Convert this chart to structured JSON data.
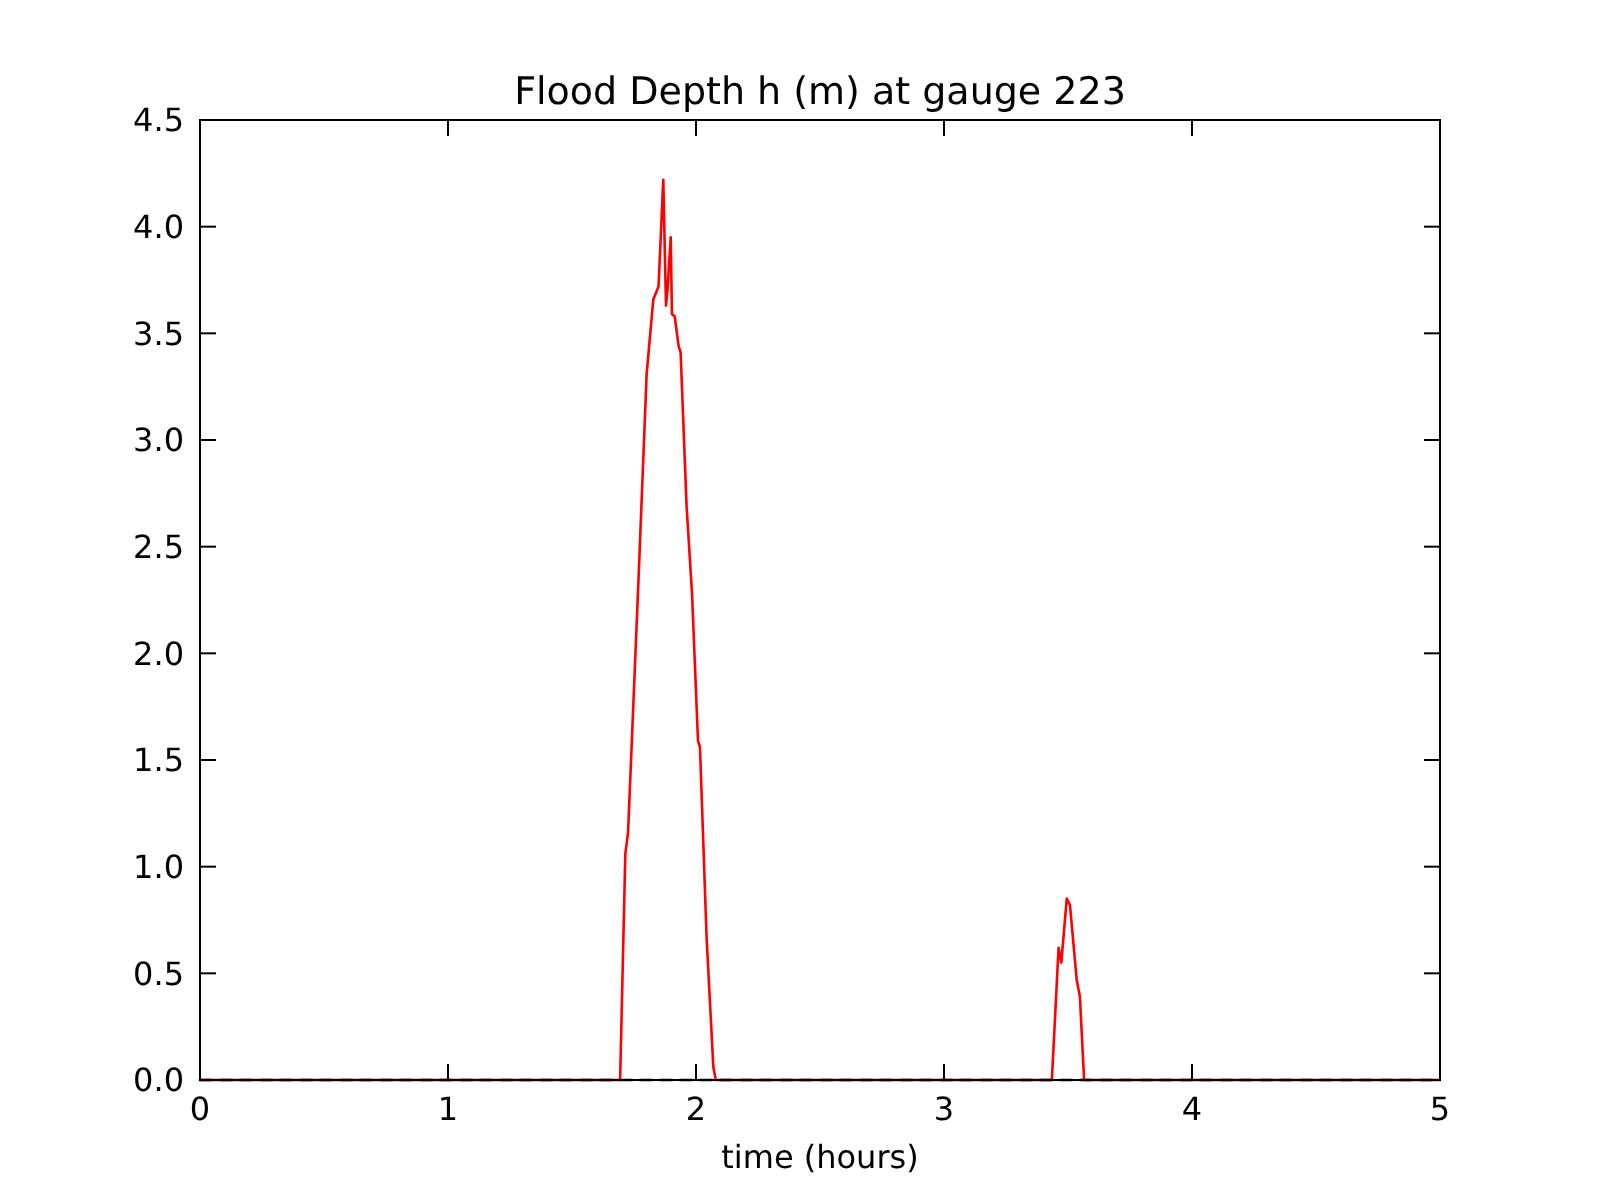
{
  "chart_data": {
    "type": "line",
    "title": "Flood Depth h (m) at gauge 223",
    "xlabel": "time (hours)",
    "xlim": [
      0,
      5
    ],
    "xticks": [
      0,
      1,
      2,
      3,
      4,
      5
    ],
    "ylim": [
      0,
      4.5
    ],
    "yticks": [
      {
        "value": 0,
        "label": "0.0"
      },
      {
        "value": 0.5,
        "label": "0.5"
      },
      {
        "value": 1,
        "label": "1.0"
      },
      {
        "value": 1.5,
        "label": "1.5"
      },
      {
        "value": 2,
        "label": "2.0"
      },
      {
        "value": 2.5,
        "label": "2.5"
      },
      {
        "value": 3,
        "label": "3.0"
      },
      {
        "value": 3.5,
        "label": "3.5"
      },
      {
        "value": 4,
        "label": "4.0"
      },
      {
        "value": 4.5,
        "label": "4.5"
      }
    ],
    "grid": false,
    "marker": "none",
    "series": [
      {
        "color": "#ff0000",
        "line_style": "solid",
        "x": [
          0,
          1.694,
          1.715,
          1.726,
          1.769,
          1.801,
          1.828,
          1.849,
          1.868,
          1.879,
          1.885,
          1.898,
          1.903,
          1.914,
          1.93,
          1.938,
          1.962,
          1.984,
          2.008,
          2.016,
          2.043,
          2.07,
          2.08,
          3.435,
          3.462,
          3.473,
          3.495,
          3.508,
          3.535,
          3.548,
          3.565,
          5
        ],
        "values": [
          0,
          0,
          1.06,
          1.16,
          2.37,
          3.31,
          3.66,
          3.72,
          4.22,
          3.63,
          3.7,
          3.95,
          3.59,
          3.58,
          3.44,
          3.41,
          2.69,
          2.28,
          1.59,
          1.56,
          0.66,
          0.06,
          0,
          0,
          0.62,
          0.55,
          0.85,
          0.82,
          0.47,
          0.39,
          0,
          0
        ]
      },
      {
        "color": "#000000",
        "line_style": "dashed",
        "x": [
          0,
          5
        ],
        "values": [
          0,
          0
        ]
      }
    ]
  }
}
